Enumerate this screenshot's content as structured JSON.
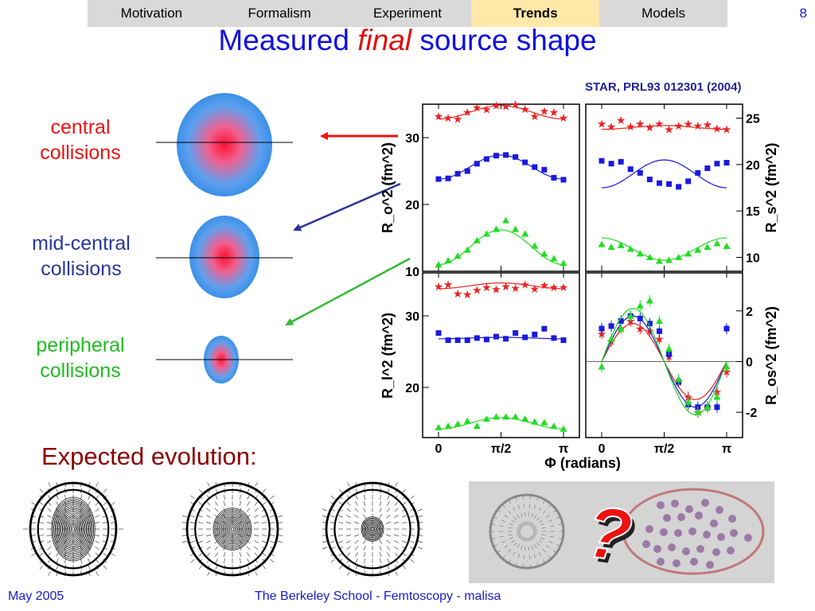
{
  "nav": {
    "items": [
      "Motivation",
      "Formalism",
      "Experiment",
      "Trends",
      "Models"
    ],
    "active": "Trends"
  },
  "page_number": "8",
  "title": {
    "before": "Measured ",
    "emph": "final",
    "after": " source shape"
  },
  "citation": "STAR, PRL93 012301 (2004)",
  "labels": {
    "central": [
      "central",
      "collisions"
    ],
    "mid": [
      "mid-central",
      "collisions"
    ],
    "peripheral": [
      "peripheral",
      "collisions"
    ]
  },
  "expected": "Expected evolution:",
  "question_mark": "?",
  "footer": {
    "date": "May 2005",
    "center": "The Berkeley School - Femtoscopy - malisa"
  },
  "colors": {
    "central": "#ee1111",
    "mid": "#2a3699",
    "peripheral": "#22bb22",
    "title": "#1010dd"
  },
  "chart_data": [
    {
      "type": "scatter",
      "panel": "top-left",
      "ylabel": "R_o^2 (fm^2)",
      "ylim": [
        10,
        35
      ],
      "xlim": [
        0,
        3.1416
      ],
      "yticks": [
        10,
        20,
        30
      ],
      "series": [
        {
          "color": "#ee2222",
          "marker": "star",
          "fit": [
            33.8,
            1.0
          ],
          "values": [
            33.2,
            33.0,
            32.8,
            33.8,
            34.5,
            34.2,
            34.8,
            34.7,
            35.0,
            34.3,
            33.2,
            34.0,
            33.8,
            33.0
          ]
        },
        {
          "color": "#1a1add",
          "marker": "square",
          "fit": [
            25.6,
            1.8
          ],
          "values": [
            23.8,
            23.9,
            24.6,
            25.0,
            26.1,
            26.8,
            27.3,
            27.4,
            27.1,
            26.3,
            25.6,
            25.2,
            24.0,
            23.7
          ]
        },
        {
          "color": "#22dd22",
          "marker": "triangle",
          "fit": [
            13.6,
            2.6
          ],
          "values": [
            11.0,
            11.6,
            12.3,
            13.2,
            14.6,
            15.6,
            16.3,
            17.6,
            16.3,
            15.6,
            13.8,
            12.6,
            11.9,
            11.2
          ]
        }
      ]
    },
    {
      "type": "scatter",
      "panel": "top-right",
      "ylabel": "R_s^2 (fm^2)",
      "ylim": [
        8.5,
        26.5
      ],
      "xlim": [
        0,
        3.1416
      ],
      "yticks": [
        10,
        15,
        20,
        25
      ],
      "series": [
        {
          "color": "#ee2222",
          "marker": "star",
          "fit": [
            24.0,
            0.2
          ],
          "values": [
            24.4,
            24.1,
            24.8,
            24.1,
            24.4,
            24.0,
            24.4,
            23.8,
            24.2,
            24.4,
            24.2,
            24.3,
            23.9,
            23.8
          ]
        },
        {
          "color": "#1a1add",
          "marker": "square",
          "fit": [
            19.0,
            1.5
          ],
          "values": [
            20.4,
            20.1,
            20.3,
            19.5,
            19.1,
            18.4,
            18.0,
            17.9,
            17.6,
            18.2,
            19.1,
            19.6,
            20.1,
            20.2
          ]
        },
        {
          "color": "#22dd22",
          "marker": "triangle",
          "fit": [
            10.9,
            -1.2
          ],
          "values": [
            11.4,
            11.1,
            11.3,
            10.9,
            10.4,
            10.0,
            9.6,
            9.7,
            10.0,
            10.4,
            10.8,
            11.1,
            11.5,
            11.2
          ]
        }
      ]
    },
    {
      "type": "scatter",
      "panel": "bottom-left",
      "ylabel": "R_l^2 (fm^2)",
      "ylim": [
        13,
        36
      ],
      "xlim": [
        0,
        3.1416
      ],
      "yticks": [
        20,
        30
      ],
      "xticks": [
        "0",
        "π/2",
        "π"
      ],
      "series": [
        {
          "color": "#ee2222",
          "marker": "star",
          "fit": [
            34.2,
            0.4
          ],
          "values": [
            34.1,
            34.4,
            33.1,
            33.0,
            33.6,
            34.0,
            33.7,
            34.1,
            33.9,
            34.4,
            33.8,
            34.3,
            34.0,
            34.0
          ]
        },
        {
          "color": "#1a1add",
          "marker": "square",
          "fit": [
            26.9,
            0.1
          ],
          "values": [
            27.6,
            26.6,
            26.6,
            26.6,
            26.9,
            26.7,
            27.1,
            26.8,
            27.6,
            27.0,
            27.4,
            28.2,
            26.9,
            26.6
          ]
        },
        {
          "color": "#22dd22",
          "marker": "triangle",
          "fit": [
            15.0,
            0.8
          ],
          "values": [
            14.4,
            14.6,
            14.9,
            15.3,
            14.6,
            15.6,
            15.9,
            15.9,
            15.9,
            15.6,
            15.2,
            15.1,
            14.6,
            14.2
          ]
        }
      ]
    },
    {
      "type": "scatter",
      "panel": "bottom-right",
      "ylabel": "R_os^2 (fm^2)",
      "ylim": [
        -3,
        3.5
      ],
      "xlim": [
        0,
        3.1416
      ],
      "yticks": [
        -2,
        0,
        2
      ],
      "xticks": [
        "0",
        "π/2",
        "π"
      ],
      "xlabel": "Φ (radians)",
      "series": [
        {
          "color": "#ee2222",
          "marker": "star",
          "fit": [
            0,
            1.5
          ],
          "values": [
            1.1,
            0.8,
            1.3,
            1.6,
            1.3,
            1.2,
            0.9,
            0.2,
            -0.8,
            -1.4,
            -2.0,
            -1.8,
            -1.2,
            -0.4
          ]
        },
        {
          "color": "#1a1add",
          "marker": "square",
          "fit": [
            0,
            1.8
          ],
          "values": [
            1.3,
            1.4,
            1.6,
            1.8,
            1.7,
            1.5,
            1.2,
            0.3,
            -0.8,
            -1.7,
            -1.8,
            -1.8,
            -1.8,
            1.3
          ]
        },
        {
          "color": "#22dd22",
          "marker": "triangle",
          "fit": [
            0,
            2.1
          ],
          "values": [
            -0.2,
            0.9,
            1.3,
            1.8,
            2.2,
            2.4,
            1.6,
            0.5,
            -0.7,
            -1.6,
            -2.0,
            -1.8,
            -1.4,
            -0.2
          ]
        }
      ]
    }
  ]
}
